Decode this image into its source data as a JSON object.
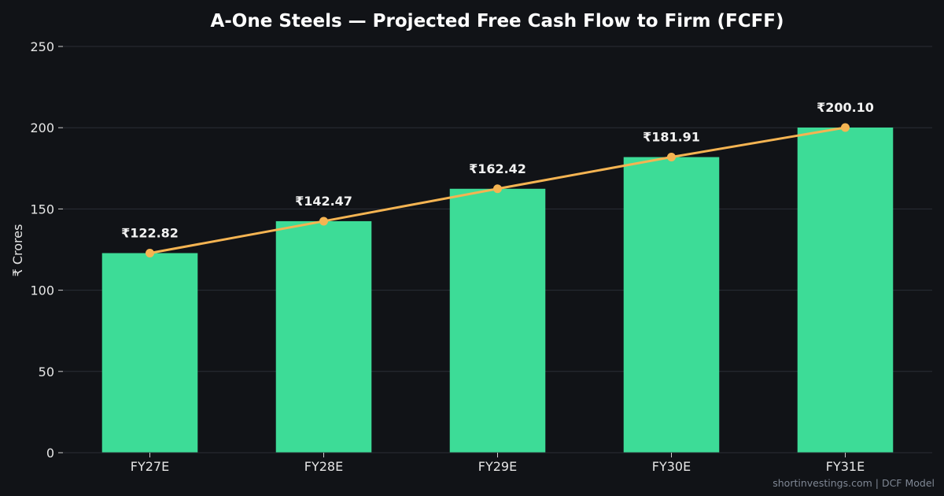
{
  "chart_data": {
    "type": "bar",
    "title": "A-One Steels — Projected Free Cash Flow to Firm (FCFF)",
    "xlabel": "",
    "ylabel": "₹ Crores",
    "categories": [
      "FY27E",
      "FY28E",
      "FY29E",
      "FY30E",
      "FY31E"
    ],
    "values": [
      122.82,
      142.47,
      162.42,
      181.91,
      200.1
    ],
    "data_labels": [
      "₹122.82",
      "₹142.47",
      "₹162.42",
      "₹181.91",
      "₹200.10"
    ],
    "overlay_line": {
      "values": [
        122.82,
        142.47,
        162.42,
        181.91,
        200.1
      ]
    },
    "ylim": [
      0,
      250
    ],
    "yticks": [
      0,
      50,
      100,
      150,
      200,
      250
    ],
    "grid": true,
    "legend": "none",
    "colors": {
      "background": "#111317",
      "bar": "#3ddc97",
      "line": "#f5b452",
      "grid": "#2a2e36",
      "text": "#e6e6e6"
    }
  },
  "footer": {
    "text": "shortinvestings.com  |  DCF Model"
  }
}
